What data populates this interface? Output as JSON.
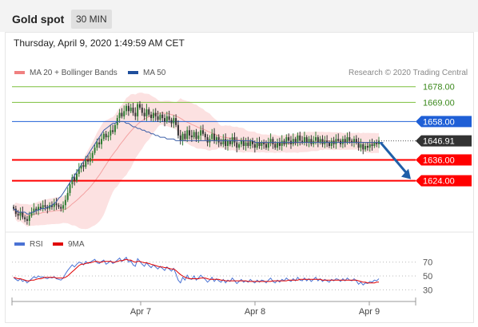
{
  "header": {
    "title": "Gold spot",
    "timeframe": "30 MIN"
  },
  "timestamp": "Thursday, April 9, 2020 1:49:59 AM CET",
  "attribution": "Research © 2020 Trading Central",
  "legend": [
    {
      "label": "MA 20 + Bollinger Bands",
      "color": "#f08080"
    },
    {
      "label": "MA 50",
      "color": "#1f4e9c"
    }
  ],
  "rsi_legend": [
    {
      "label": "RSI",
      "color": "#4a72d4"
    },
    {
      "label": "9MA",
      "color": "#e00000"
    }
  ],
  "colors": {
    "up_candle": "#2e7d32",
    "down_candle": "#333333",
    "support": "#ff0000",
    "resistance": "#7cbf3c",
    "pivot": "#1f5fd6",
    "current": "#333333",
    "arrow": "#1f5fa8"
  },
  "chart_data": [
    {
      "type": "candlestick",
      "title": "Gold spot 30 MIN",
      "x_ticks": [
        "Apr 7",
        "Apr 8",
        "Apr 9"
      ],
      "ylim": [
        1595,
        1682
      ],
      "current_price": 1646.91,
      "levels": [
        {
          "value": 1678.0,
          "label": "1678.00",
          "kind": "resistance"
        },
        {
          "value": 1669.0,
          "label": "1669.00",
          "kind": "resistance"
        },
        {
          "value": 1658.0,
          "label": "1658.00",
          "kind": "pivot"
        },
        {
          "value": 1636.0,
          "label": "1636.00",
          "kind": "support"
        },
        {
          "value": 1624.0,
          "label": "1624.00",
          "kind": "support"
        }
      ],
      "close": [
        1608,
        1605,
        1604,
        1606,
        1603,
        1602,
        1601,
        1604,
        1606,
        1608,
        1607,
        1609,
        1608,
        1610,
        1609,
        1608,
        1610,
        1609,
        1611,
        1610,
        1609,
        1608,
        1610,
        1613,
        1617,
        1622,
        1626,
        1624,
        1628,
        1631,
        1633,
        1632,
        1636,
        1635,
        1637,
        1640,
        1643,
        1646,
        1645,
        1648,
        1651,
        1649,
        1650,
        1653,
        1652,
        1656,
        1660,
        1663,
        1661,
        1664,
        1667,
        1664,
        1666,
        1663,
        1661,
        1668,
        1666,
        1663,
        1661,
        1665,
        1662,
        1660,
        1663,
        1661,
        1659,
        1662,
        1660,
        1658,
        1661,
        1659,
        1657,
        1660,
        1656,
        1650,
        1647,
        1651,
        1648,
        1653,
        1650,
        1649,
        1652,
        1648,
        1650,
        1653,
        1651,
        1649,
        1646,
        1648,
        1651,
        1647,
        1649,
        1646,
        1645,
        1648,
        1644,
        1647,
        1645,
        1649,
        1646,
        1643,
        1645,
        1647,
        1644,
        1646,
        1644,
        1647,
        1645,
        1643,
        1646,
        1644,
        1646,
        1645,
        1643,
        1646,
        1648,
        1645,
        1643,
        1646,
        1644,
        1647,
        1645,
        1649,
        1647,
        1645,
        1648,
        1646,
        1650,
        1647,
        1646,
        1649,
        1646,
        1648,
        1645,
        1647,
        1649,
        1646,
        1648,
        1645,
        1647,
        1646,
        1644,
        1647,
        1645,
        1648,
        1647,
        1645,
        1648,
        1646,
        1649,
        1647,
        1646,
        1648,
        1646,
        1643,
        1645,
        1642,
        1644,
        1643,
        1645,
        1644,
        1646,
        1645,
        1647
      ],
      "ma50": [
        1608,
        1607,
        1606,
        1606,
        1606,
        1606,
        1605,
        1605,
        1606,
        1606,
        1607,
        1607,
        1608,
        1608,
        1608,
        1609,
        1609,
        1610,
        1611,
        1612,
        1614,
        1615,
        1617,
        1619,
        1621,
        1623,
        1625,
        1627,
        1629,
        1631,
        1633,
        1635,
        1637,
        1639,
        1641,
        1643,
        1645,
        1647,
        1649,
        1651,
        1653,
        1654,
        1655,
        1656,
        1657,
        1657,
        1658,
        1658,
        1658,
        1658,
        1657,
        1657,
        1656,
        1655,
        1655,
        1654,
        1654,
        1653,
        1653,
        1652,
        1652,
        1651,
        1651,
        1650,
        1650,
        1649,
        1649,
        1649,
        1648,
        1648,
        1648,
        1648,
        1647,
        1647,
        1647,
        1647,
        1647,
        1647,
        1647,
        1647,
        1647,
        1647,
        1647,
        1647,
        1647,
        1647,
        1647,
        1647,
        1647,
        1647,
        1647,
        1647,
        1647,
        1647,
        1647,
        1647,
        1647,
        1647,
        1647,
        1647,
        1647,
        1647,
        1647,
        1647,
        1647,
        1647,
        1647,
        1646,
        1646,
        1646,
        1646,
        1646,
        1646,
        1646,
        1646,
        1646,
        1646,
        1646,
        1646,
        1646,
        1646,
        1646,
        1646,
        1646,
        1646,
        1646,
        1646,
        1646,
        1646,
        1646,
        1646,
        1646,
        1646,
        1646,
        1646,
        1646,
        1646,
        1646,
        1646,
        1646,
        1646,
        1646,
        1646,
        1646,
        1646,
        1646,
        1646,
        1646,
        1646,
        1646,
        1646,
        1646,
        1646,
        1646,
        1646,
        1646,
        1646,
        1646,
        1646,
        1646,
        1646,
        1646,
        1646,
        1646,
        1646
      ],
      "bollinger": {
        "upper_note": "MA20 ± 2σ band",
        "ma20_shown": true
      },
      "forecast": {
        "from": 1646.91,
        "to": 1624.0
      }
    },
    {
      "type": "line",
      "title": "RSI",
      "y_ticks": [
        70,
        50,
        30
      ],
      "ylim": [
        20,
        80
      ],
      "series": [
        {
          "name": "RSI",
          "values": [
            48,
            45,
            43,
            46,
            42,
            44,
            40,
            43,
            46,
            49,
            47,
            50,
            48,
            49,
            47,
            46,
            48,
            47,
            49,
            46,
            45,
            44,
            47,
            53,
            58,
            62,
            66,
            63,
            67,
            70,
            69,
            66,
            71,
            68,
            70,
            72,
            74,
            69,
            68,
            71,
            73,
            67,
            69,
            72,
            68,
            70,
            73,
            76,
            71,
            74,
            77,
            70,
            72,
            66,
            64,
            75,
            71,
            67,
            64,
            69,
            65,
            62,
            66,
            63,
            60,
            64,
            61,
            58,
            63,
            60,
            57,
            61,
            53,
            44,
            40,
            48,
            44,
            51,
            46,
            45,
            50,
            44,
            47,
            51,
            48,
            45,
            41,
            44,
            48,
            42,
            46,
            43,
            41,
            45,
            40,
            44,
            42,
            47,
            43,
            39,
            42,
            45,
            41,
            43,
            41,
            45,
            42,
            40,
            44,
            41,
            44,
            43,
            40,
            44,
            47,
            42,
            40,
            44,
            41,
            45,
            43,
            47,
            44,
            42,
            46,
            43,
            48,
            44,
            43,
            47,
            43,
            46,
            42,
            45,
            48,
            43,
            46,
            42,
            45,
            43,
            41,
            45,
            43,
            46,
            45,
            42,
            46,
            43,
            47,
            44,
            43,
            46,
            43,
            38,
            41,
            37,
            40,
            39,
            42,
            41,
            44,
            43,
            46
          ]
        },
        {
          "name": "9MA",
          "values": [
            48,
            47,
            46,
            46,
            45,
            44,
            43,
            43,
            44,
            44,
            45,
            46,
            46,
            47,
            48,
            48,
            48,
            48,
            48,
            47,
            47,
            47,
            47,
            48,
            50,
            53,
            56,
            59,
            62,
            65,
            67,
            67,
            68,
            69,
            69,
            70,
            71,
            71,
            70,
            70,
            71,
            71,
            71,
            71,
            70,
            70,
            71,
            72,
            72,
            73,
            74,
            73,
            73,
            71,
            70,
            71,
            71,
            70,
            69,
            69,
            68,
            67,
            66,
            65,
            64,
            63,
            63,
            62,
            62,
            61,
            60,
            60,
            58,
            55,
            52,
            50,
            48,
            47,
            46,
            46,
            46,
            46,
            46,
            47,
            47,
            47,
            46,
            45,
            45,
            45,
            45,
            45,
            44,
            44,
            43,
            43,
            43,
            43,
            43,
            43,
            43,
            43,
            43,
            43,
            42,
            42,
            42,
            42,
            42,
            42,
            42,
            42,
            42,
            42,
            42,
            43,
            43,
            43,
            43,
            43,
            43,
            43,
            44,
            44,
            44,
            44,
            44,
            45,
            45,
            45,
            45,
            45,
            45,
            45,
            45,
            45,
            45,
            44,
            44,
            44,
            44,
            44,
            44,
            44,
            44,
            44,
            44,
            44,
            44,
            44,
            44,
            44,
            44,
            43,
            42,
            41,
            41,
            40,
            40,
            40,
            40,
            41,
            41
          ]
        }
      ]
    }
  ]
}
